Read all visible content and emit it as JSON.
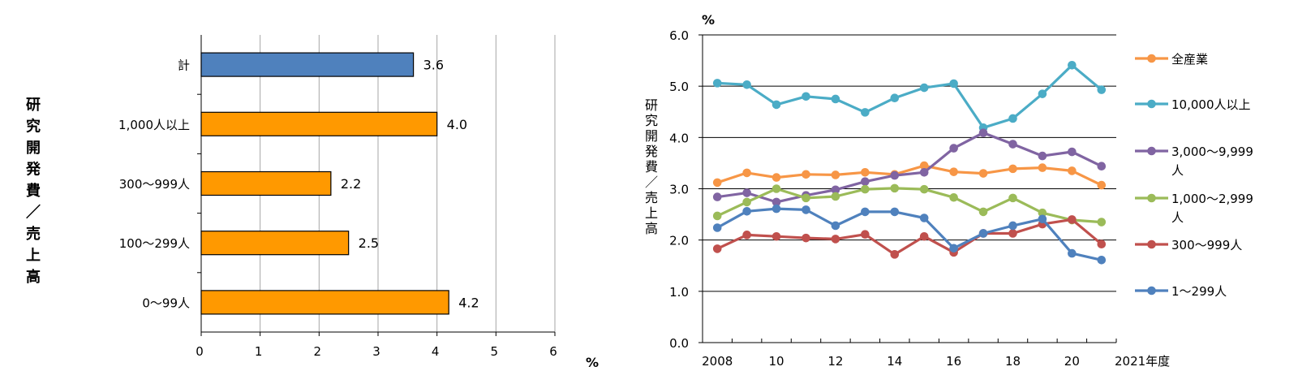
{
  "colors": {
    "total_bar": "#4f81bd",
    "size_bar": "#ff9900",
    "grid": "#a6a6a6",
    "axis": "#000000"
  },
  "chart_data": [
    {
      "type": "bar",
      "orientation": "horizontal",
      "ylabel": "研究開発費／売上高",
      "xunit": "%",
      "xlim": [
        0,
        6
      ],
      "xticks": [
        "0",
        "1",
        "2",
        "3",
        "4",
        "5",
        "6"
      ],
      "grid": true,
      "categories": [
        "計",
        "1,000人以上",
        "300～999人",
        "100～299人",
        "0～99人"
      ],
      "values": [
        3.6,
        4.0,
        2.2,
        2.5,
        4.2
      ],
      "data_labels": [
        "3.6",
        "4.0",
        "2.2",
        "2.5",
        "4.2"
      ]
    },
    {
      "type": "line",
      "ylabel": "研究開発費／売上高",
      "yunit": "%",
      "ylim": [
        0,
        6
      ],
      "yticks": [
        "0.0",
        "1.0",
        "2.0",
        "3.0",
        "4.0",
        "5.0",
        "6.0"
      ],
      "x": [
        2008,
        2009,
        2010,
        2011,
        2012,
        2013,
        2014,
        2015,
        2016,
        2017,
        2018,
        2019,
        2020,
        2021
      ],
      "xtick_labels": [
        "2008",
        "10",
        "12",
        "14",
        "16",
        "18",
        "20",
        "2021年度"
      ],
      "grid": true,
      "legend_position": "right",
      "series": [
        {
          "name": "全産業",
          "color": "#f79646",
          "values": [
            3.12,
            3.31,
            3.22,
            3.28,
            3.27,
            3.32,
            3.28,
            3.45,
            3.33,
            3.3,
            3.39,
            3.41,
            3.35,
            3.07
          ]
        },
        {
          "name": "10,000人以上",
          "color": "#4bacc6",
          "values": [
            5.06,
            5.03,
            4.64,
            4.8,
            4.75,
            4.49,
            4.77,
            4.97,
            5.05,
            4.19,
            4.37,
            4.85,
            5.41,
            4.93
          ]
        },
        {
          "name": "3,000～9,999人",
          "color": "#8064a2",
          "values": [
            2.84,
            2.92,
            2.74,
            2.87,
            2.98,
            3.14,
            3.26,
            3.32,
            3.79,
            4.09,
            3.87,
            3.64,
            3.72,
            3.44
          ]
        },
        {
          "name": "1,000～2,999人",
          "color": "#9bbb59",
          "values": [
            2.47,
            2.74,
            3.0,
            2.82,
            2.85,
            2.99,
            3.01,
            2.99,
            2.83,
            2.55,
            2.82,
            2.53,
            2.39,
            2.35
          ]
        },
        {
          "name": "300～999人",
          "color": "#c0504d",
          "values": [
            1.83,
            2.1,
            2.07,
            2.04,
            2.02,
            2.11,
            1.72,
            2.07,
            1.76,
            2.13,
            2.13,
            2.31,
            2.4,
            1.92
          ]
        },
        {
          "name": "1～299人",
          "color": "#4f81bd",
          "values": [
            2.24,
            2.56,
            2.61,
            2.59,
            2.28,
            2.55,
            2.55,
            2.43,
            1.84,
            2.13,
            2.28,
            2.41,
            1.74,
            1.61
          ]
        }
      ]
    }
  ]
}
